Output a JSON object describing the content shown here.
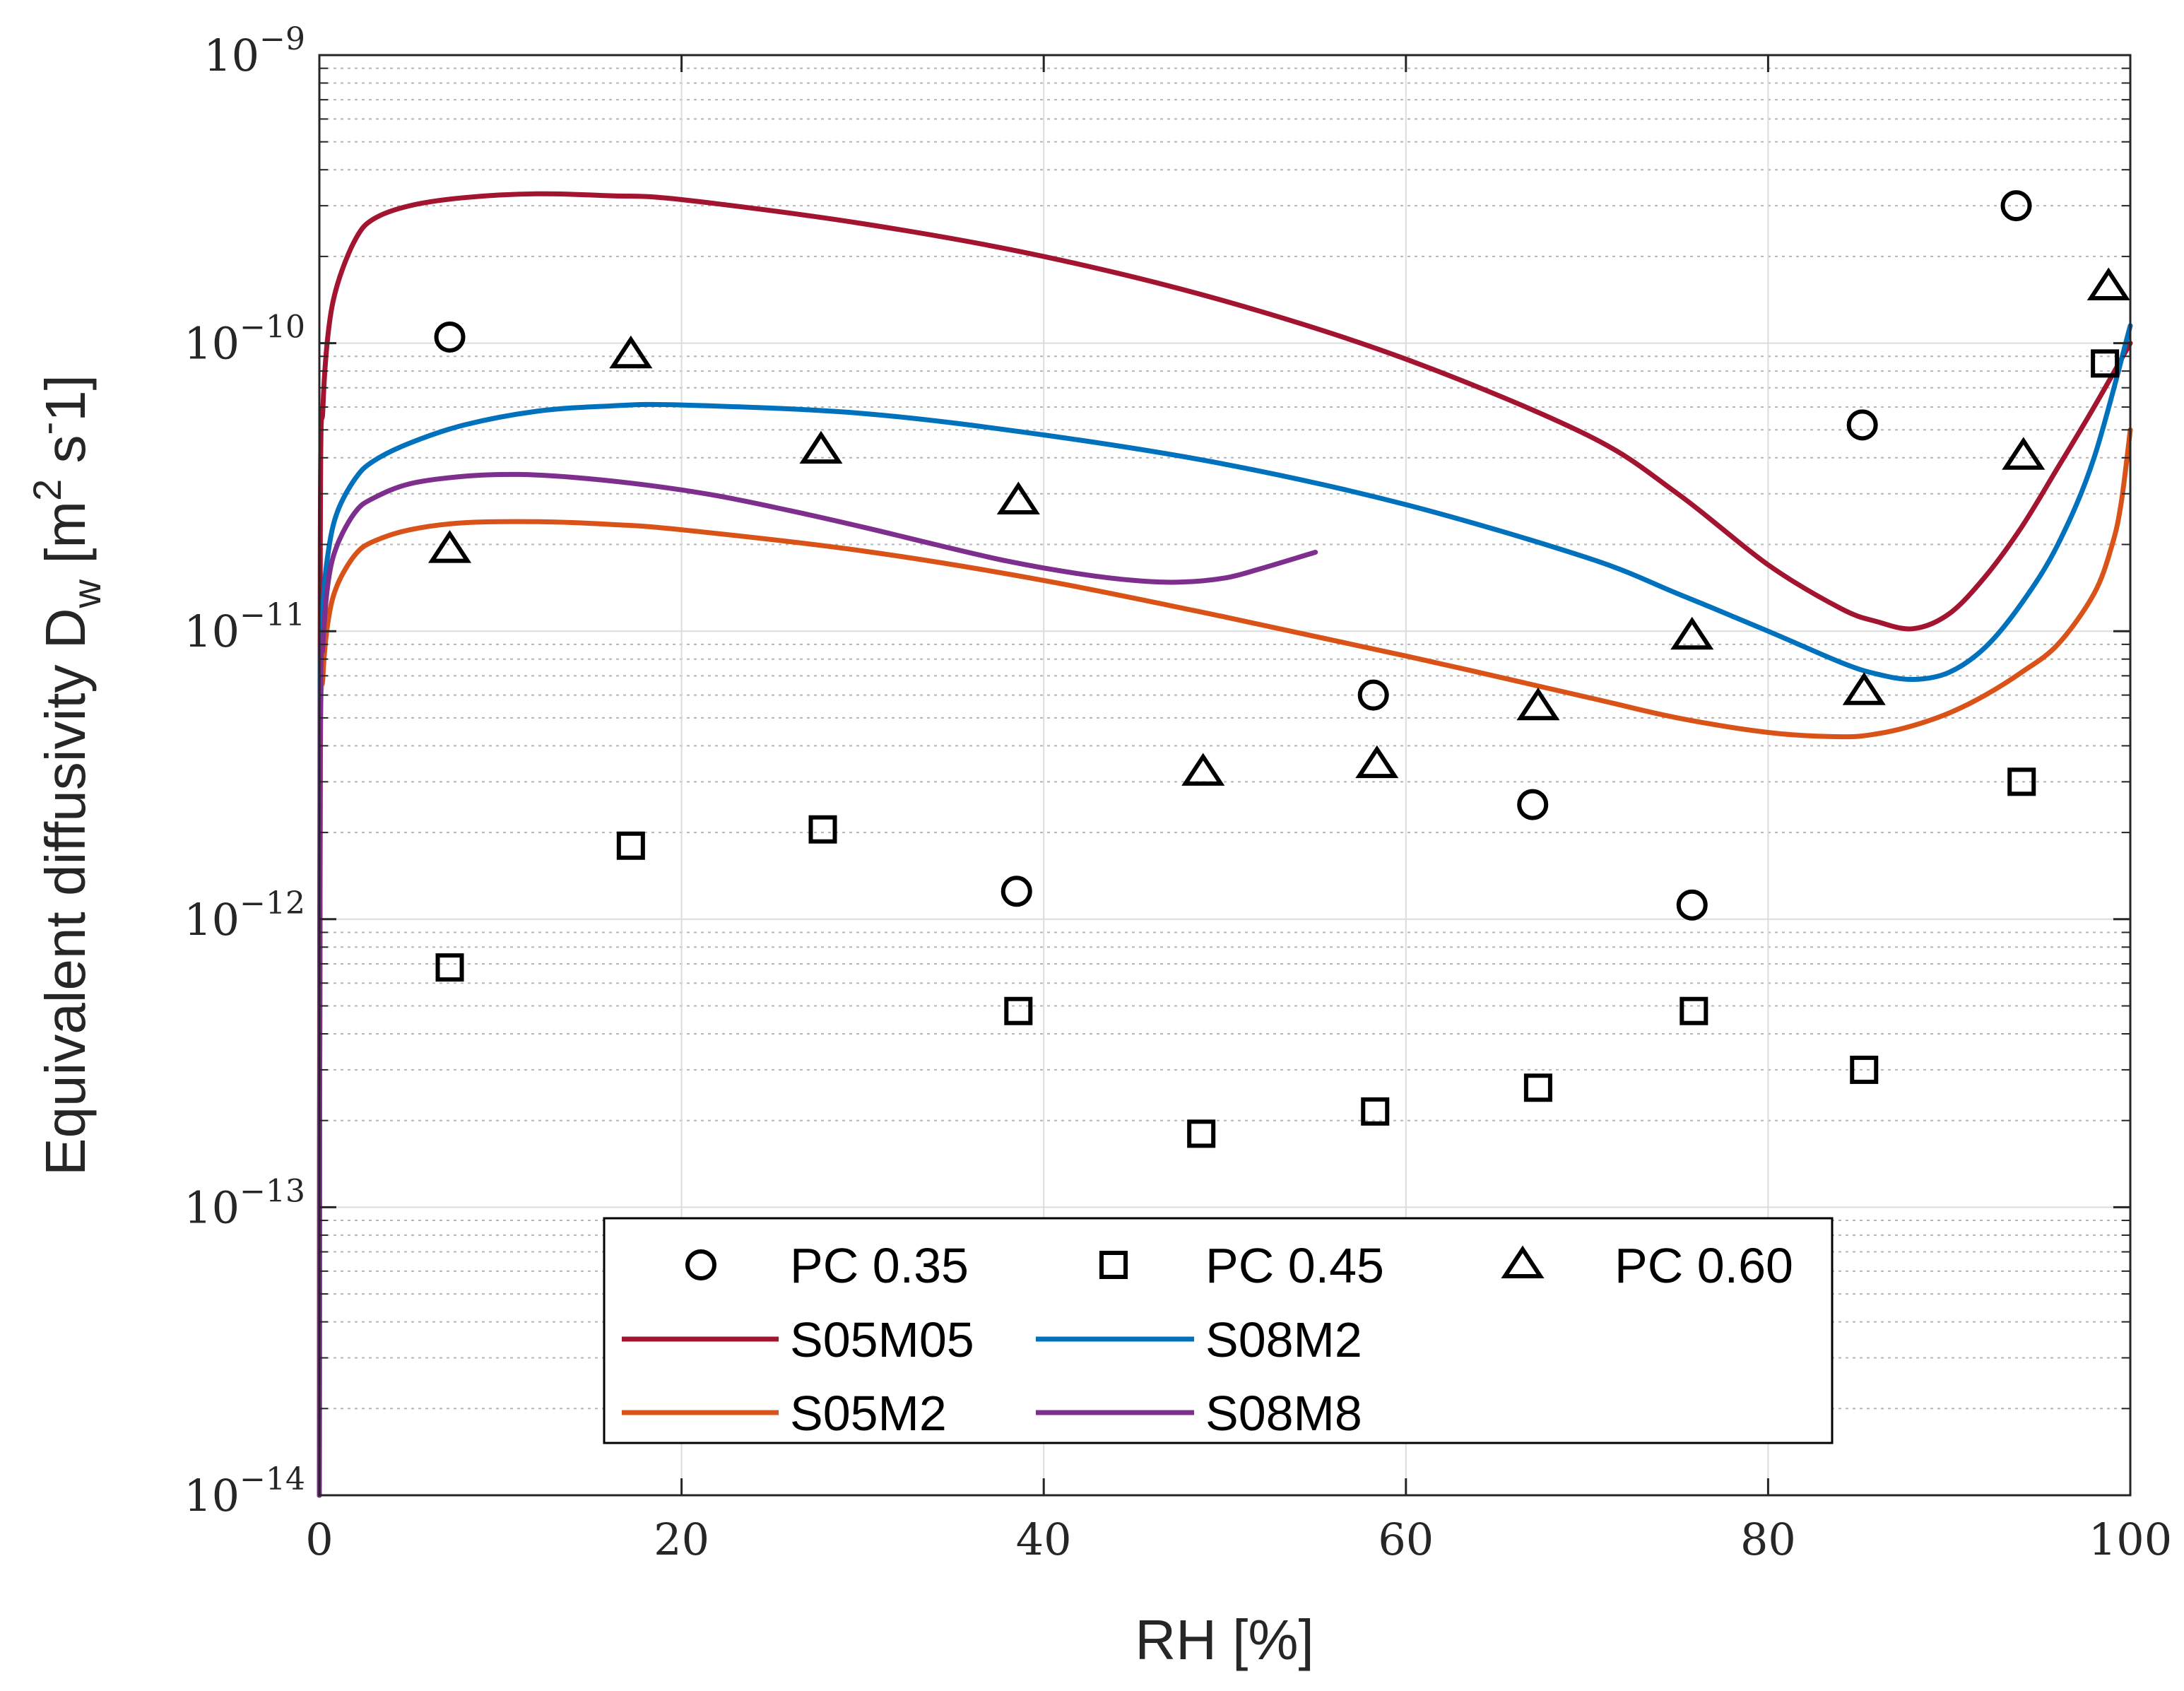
{
  "chart_data": {
    "type": "scatter",
    "title": "",
    "xlabel": "RH [%]",
    "ylabel_main": "Equivalent diffusivity D",
    "ylabel_sub": "w",
    "ylabel_unit_open": " [m",
    "ylabel_unit_sq": "2",
    "ylabel_unit_s": " s",
    "ylabel_unit_sign": "-",
    "ylabel_unit_close": "1]",
    "xlim": [
      0,
      100
    ],
    "ylim_exponent": [
      -14,
      -9
    ],
    "yscale": "log",
    "grid": true,
    "legend_position": "bottom-center",
    "x_ticks": [
      "0",
      "20",
      "40",
      "60",
      "80",
      "100"
    ],
    "y_ticks": [
      {
        "base": "10",
        "exp": "−14"
      },
      {
        "base": "10",
        "exp": "−13"
      },
      {
        "base": "10",
        "exp": "−12"
      },
      {
        "base": "10",
        "exp": "−11"
      },
      {
        "base": "10",
        "exp": "−10"
      },
      {
        "base": "10",
        "exp": "−9"
      }
    ],
    "markers": [
      {
        "name": "PC 0.35",
        "marker": "circle",
        "points": [
          [
            7.2,
            1.05e-10
          ],
          [
            38.5,
            1.25e-12
          ],
          [
            58.2,
            6e-12
          ],
          [
            67.0,
            2.5e-12
          ],
          [
            75.8,
            1.12e-12
          ],
          [
            85.2,
            5.2e-11
          ],
          [
            93.7,
            3e-10
          ]
        ]
      },
      {
        "name": "PC 0.45",
        "marker": "square",
        "points": [
          [
            7.2,
            6.8e-13
          ],
          [
            17.2,
            1.8e-12
          ],
          [
            27.8,
            2.05e-12
          ],
          [
            38.6,
            4.8e-13
          ],
          [
            48.7,
            1.8e-13
          ],
          [
            58.3,
            2.15e-13
          ],
          [
            67.3,
            2.6e-13
          ],
          [
            75.9,
            4.8e-13
          ],
          [
            85.3,
            3e-13
          ],
          [
            94.0,
            3e-12
          ],
          [
            98.6,
            8.5e-11
          ]
        ]
      },
      {
        "name": "PC 0.60",
        "marker": "triangle",
        "points": [
          [
            7.2,
            1.9e-11
          ],
          [
            17.2,
            9e-11
          ],
          [
            27.7,
            4.2e-11
          ],
          [
            38.6,
            2.8e-11
          ],
          [
            48.8,
            3.2e-12
          ],
          [
            58.4,
            3.4e-12
          ],
          [
            67.3,
            5.4e-12
          ],
          [
            75.8,
            9.5e-12
          ],
          [
            85.3,
            6.1e-12
          ],
          [
            94.1,
            4e-11
          ],
          [
            98.8,
            1.55e-10
          ]
        ]
      }
    ],
    "series": [
      {
        "name": "S05M05",
        "color": "#A2142F",
        "x": [
          0,
          0.05,
          0.2,
          0.5,
          1,
          2,
          3,
          5,
          8,
          12,
          16,
          20,
          30,
          40,
          50,
          60,
          70,
          75,
          80,
          84,
          86,
          88,
          90,
          92,
          94,
          96,
          98,
          100
        ],
        "y": [
          1e-14,
          2e-11,
          6e-11,
          1.1e-10,
          1.6e-10,
          2.3e-10,
          2.7e-10,
          3e-10,
          3.2e-10,
          3.3e-10,
          3.25e-10,
          3.15e-10,
          2.6e-10,
          2e-10,
          1.4e-10,
          8.8e-11,
          4.8e-11,
          3e-11,
          1.7e-11,
          1.2e-11,
          1.08e-11,
          1.02e-11,
          1.15e-11,
          1.55e-11,
          2.3e-11,
          3.7e-11,
          6e-11,
          1e-10
        ]
      },
      {
        "name": "S08M2",
        "color": "#0072BD",
        "x": [
          0,
          0.05,
          0.2,
          0.5,
          1,
          2,
          3,
          5,
          8,
          12,
          16,
          20,
          30,
          40,
          50,
          60,
          70,
          75,
          80,
          84,
          86,
          88,
          90,
          92,
          94,
          96,
          98,
          100
        ],
        "y": [
          1e-14,
          5e-12,
          1.2e-11,
          1.9e-11,
          2.6e-11,
          3.4e-11,
          3.9e-11,
          4.5e-11,
          5.2e-11,
          5.8e-11,
          6.05e-11,
          6.1e-11,
          5.7e-11,
          4.8e-11,
          3.8e-11,
          2.75e-11,
          1.8e-11,
          1.35e-11,
          1e-11,
          7.8e-12,
          7.1e-12,
          6.8e-12,
          7.2e-12,
          8.8e-12,
          1.25e-11,
          2e-11,
          4e-11,
          1.15e-10
        ]
      },
      {
        "name": "S05M2",
        "color": "#D95319",
        "x": [
          0,
          0.05,
          0.2,
          0.5,
          1,
          2,
          3,
          5,
          8,
          12,
          16,
          20,
          30,
          40,
          50,
          60,
          70,
          75,
          80,
          84,
          86,
          88,
          90,
          92,
          94,
          96,
          98,
          99,
          99.5,
          100
        ],
        "y": [
          1e-14,
          3e-12,
          7e-12,
          1.1e-11,
          1.45e-11,
          1.85e-11,
          2.05e-11,
          2.25e-11,
          2.38e-11,
          2.4e-11,
          2.35e-11,
          2.25e-11,
          1.9e-11,
          1.5e-11,
          1.12e-11,
          8.2e-12,
          5.9e-12,
          5e-12,
          4.45e-12,
          4.3e-12,
          4.4e-12,
          4.7e-12,
          5.2e-12,
          6e-12,
          7.2e-12,
          9e-12,
          1.35e-11,
          2e-11,
          2.8e-11,
          5e-11
        ]
      },
      {
        "name": "S08M8",
        "color": "#7E2F8E",
        "x": [
          0,
          0.05,
          0.2,
          0.5,
          1,
          2,
          3,
          5,
          8,
          11,
          14,
          18,
          22,
          26,
          30,
          34,
          38,
          42,
          45,
          47.5,
          50,
          52,
          55
        ],
        "y": [
          1e-14,
          4e-12,
          9e-12,
          1.5e-11,
          2e-11,
          2.6e-11,
          2.9e-11,
          3.25e-11,
          3.45e-11,
          3.5e-11,
          3.42e-11,
          3.22e-11,
          2.95e-11,
          2.62e-11,
          2.3e-11,
          2e-11,
          1.75e-11,
          1.58e-11,
          1.5e-11,
          1.48e-11,
          1.53e-11,
          1.65e-11,
          1.88e-11
        ]
      }
    ],
    "legend": {
      "row1": [
        "PC 0.35",
        "PC 0.45",
        "PC 0.60"
      ],
      "row2": [
        "S05M05",
        "S08M2"
      ],
      "row3": [
        "S05M2",
        "S08M8"
      ]
    }
  }
}
